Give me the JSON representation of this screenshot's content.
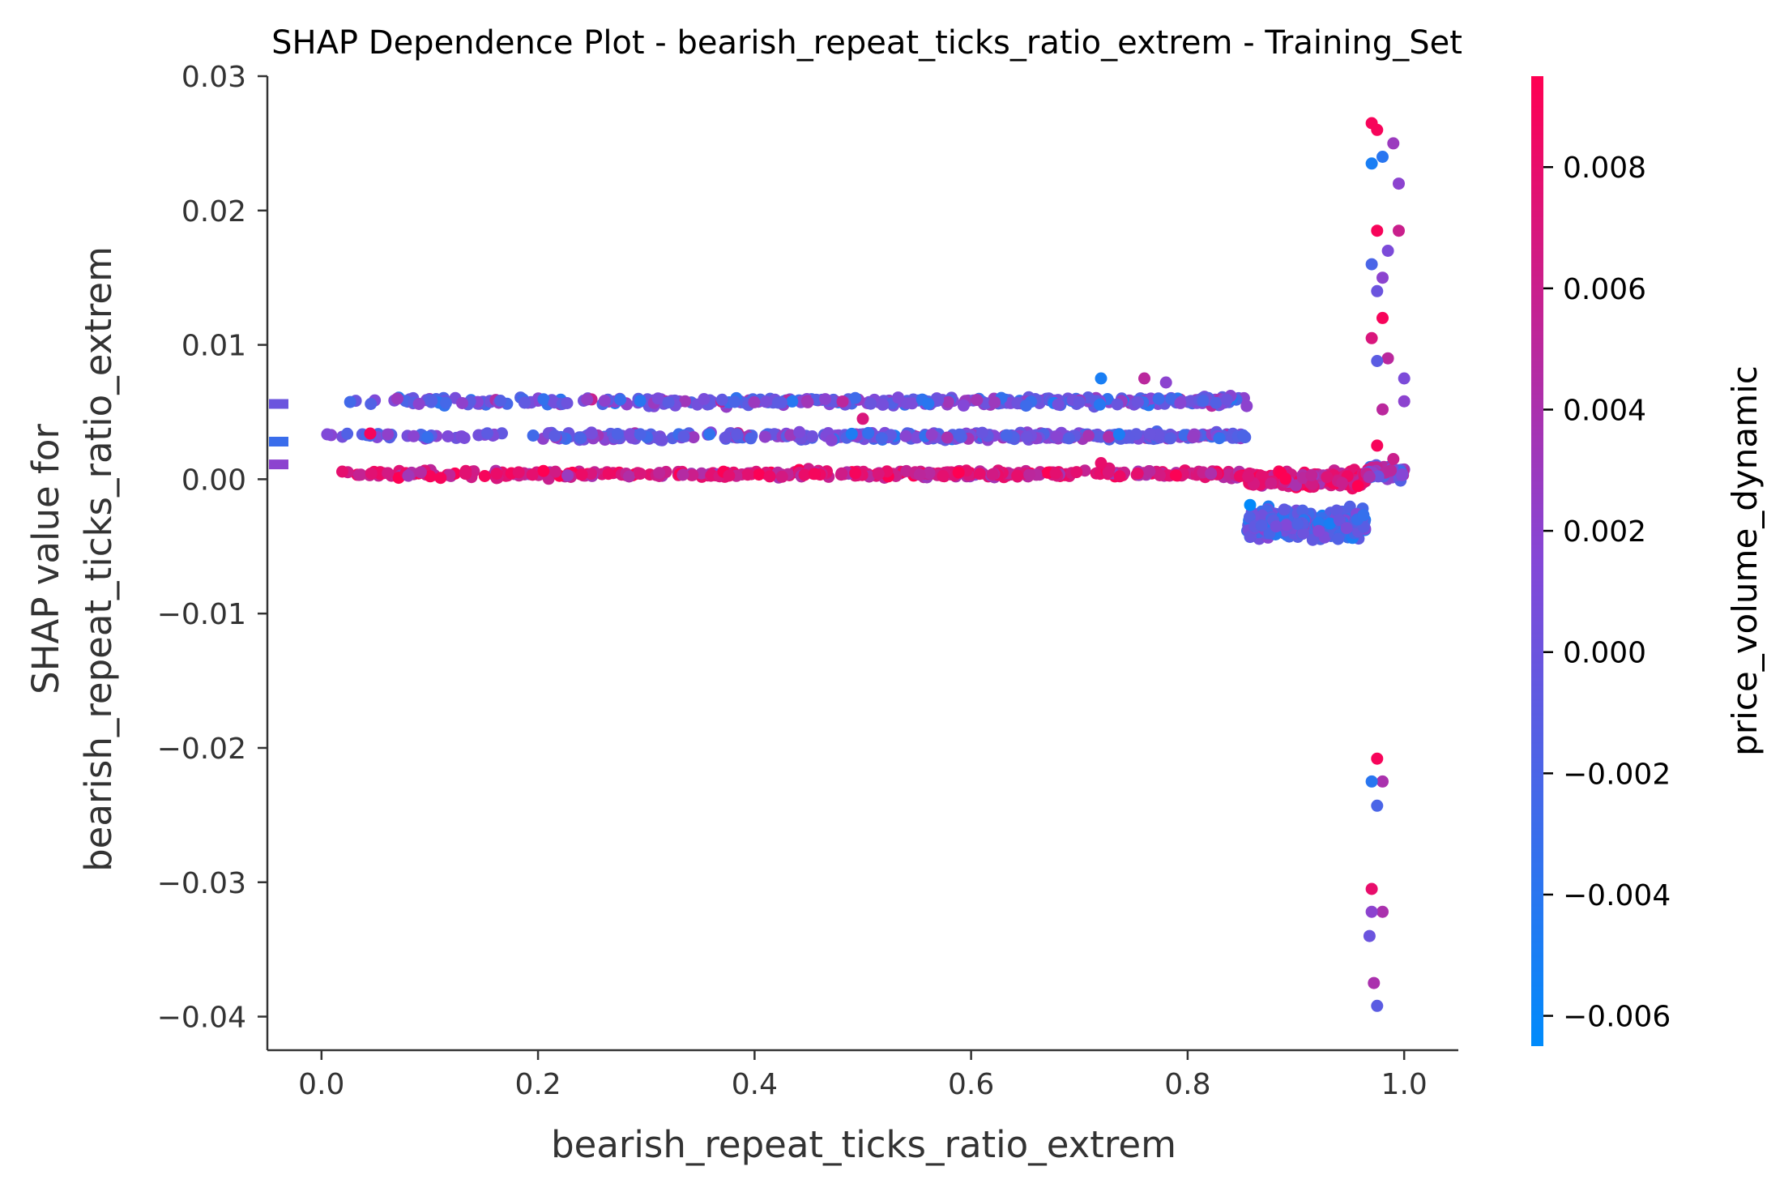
{
  "chart_data": {
    "type": "scatter",
    "title": "SHAP Dependence Plot - bearish_repeat_ticks_ratio_extrem - Training_Set",
    "xlabel": "bearish_repeat_ticks_ratio_extrem",
    "ylabel_line1": "SHAP value for",
    "ylabel_line2": "bearish_repeat_ticks_ratio_extrem",
    "xlim": [
      -0.05,
      1.05
    ],
    "ylim": [
      -0.0425,
      0.03
    ],
    "xticks": [
      0.0,
      0.2,
      0.4,
      0.6,
      0.8,
      1.0
    ],
    "xtick_labels": [
      "0.0",
      "0.2",
      "0.4",
      "0.6",
      "0.8",
      "1.0"
    ],
    "yticks": [
      0.03,
      0.02,
      0.01,
      0.0,
      -0.01,
      -0.02,
      -0.03,
      -0.04
    ],
    "ytick_labels": [
      "0.03",
      "0.02",
      "0.01",
      "0.00",
      "−0.01",
      "−0.02",
      "−0.03",
      "−0.04"
    ],
    "grid": false,
    "colorbar": {
      "label": "price_volume_dynamic",
      "range": [
        -0.0065,
        0.0095
      ],
      "ticks": [
        0.008,
        0.006,
        0.004,
        0.002,
        0.0,
        -0.002,
        -0.004,
        -0.006
      ],
      "tick_labels": [
        "0.008",
        "0.006",
        "0.004",
        "0.002",
        "0.000",
        "−0.002",
        "−0.004",
        "−0.006"
      ],
      "colors": {
        "low": "#008bfb",
        "mid": "#8447d7",
        "high": "#ff0052"
      }
    },
    "series": [
      {
        "bands": [
          {
            "x_range": [
              0.0,
              0.855
            ],
            "y": 0.0058,
            "y_jitter": 0.0004,
            "count": 380,
            "color_mean": 0.0001,
            "color_spread": 0.0045
          },
          {
            "x_range": [
              0.0,
              0.855
            ],
            "y": 0.0032,
            "y_jitter": 0.0004,
            "count": 380,
            "color_mean": 0.0003,
            "color_spread": 0.0045
          },
          {
            "x_range": [
              0.0,
              0.855
            ],
            "y": 0.0004,
            "y_jitter": 0.0004,
            "count": 380,
            "color_mean": 0.0065,
            "color_spread": 0.0035
          },
          {
            "x_range": [
              0.855,
              0.965
            ],
            "y": 0.0,
            "y_jitter": 0.0008,
            "count": 220,
            "color_mean": 0.007,
            "color_spread": 0.0035
          },
          {
            "x_range": [
              0.855,
              0.965
            ],
            "y": -0.0032,
            "y_jitter": 0.0015,
            "count": 300,
            "color_mean": -0.0015,
            "color_spread": 0.004
          },
          {
            "x_range": [
              0.965,
              1.0
            ],
            "y": 0.0005,
            "y_jitter": 0.0007,
            "count": 80,
            "color_mean": 0.002,
            "color_spread": 0.006
          }
        ],
        "outliers": [
          {
            "x": 0.975,
            "y": 0.026,
            "c": 0.009
          },
          {
            "x": 0.97,
            "y": 0.0265,
            "c": 0.009
          },
          {
            "x": 0.98,
            "y": 0.024,
            "c": -0.004
          },
          {
            "x": 0.99,
            "y": 0.025,
            "c": 0.003
          },
          {
            "x": 0.995,
            "y": 0.022,
            "c": 0.002
          },
          {
            "x": 0.97,
            "y": 0.0235,
            "c": -0.005
          },
          {
            "x": 0.975,
            "y": 0.0185,
            "c": 0.009
          },
          {
            "x": 0.985,
            "y": 0.017,
            "c": 0.001
          },
          {
            "x": 0.97,
            "y": 0.016,
            "c": -0.002
          },
          {
            "x": 0.98,
            "y": 0.015,
            "c": 0.002
          },
          {
            "x": 0.995,
            "y": 0.0185,
            "c": 0.006
          },
          {
            "x": 0.975,
            "y": 0.014,
            "c": 0.0
          },
          {
            "x": 0.98,
            "y": 0.012,
            "c": 0.009
          },
          {
            "x": 0.97,
            "y": 0.0105,
            "c": 0.007
          },
          {
            "x": 0.985,
            "y": 0.009,
            "c": 0.005
          },
          {
            "x": 0.975,
            "y": 0.0088,
            "c": -0.001
          },
          {
            "x": 1.0,
            "y": 0.0075,
            "c": 0.001
          },
          {
            "x": 0.98,
            "y": 0.0052,
            "c": 0.005
          },
          {
            "x": 1.0,
            "y": 0.0058,
            "c": 0.002
          },
          {
            "x": 0.975,
            "y": 0.0025,
            "c": 0.009
          },
          {
            "x": 0.99,
            "y": 0.0015,
            "c": 0.006
          },
          {
            "x": 0.975,
            "y": -0.0208,
            "c": 0.009
          },
          {
            "x": 0.98,
            "y": -0.0225,
            "c": 0.004
          },
          {
            "x": 0.97,
            "y": -0.0225,
            "c": -0.004
          },
          {
            "x": 0.975,
            "y": -0.0243,
            "c": -0.002
          },
          {
            "x": 0.97,
            "y": -0.0305,
            "c": 0.008
          },
          {
            "x": 0.98,
            "y": -0.0322,
            "c": 0.004
          },
          {
            "x": 0.97,
            "y": -0.0322,
            "c": 0.002
          },
          {
            "x": 0.968,
            "y": -0.034,
            "c": 0.0
          },
          {
            "x": 0.972,
            "y": -0.0375,
            "c": 0.004
          },
          {
            "x": 0.975,
            "y": -0.0392,
            "c": -0.001
          },
          {
            "x": 0.045,
            "y": 0.0034,
            "c": 0.009
          },
          {
            "x": 0.07,
            "y": 0.006,
            "c": 0.003
          },
          {
            "x": 0.11,
            "y": 0.0001,
            "c": 0.009
          },
          {
            "x": 0.09,
            "y": 0.0056,
            "c": 0.002
          },
          {
            "x": 0.72,
            "y": 0.0075,
            "c": -0.005
          },
          {
            "x": 0.76,
            "y": 0.0075,
            "c": 0.005
          },
          {
            "x": 0.78,
            "y": 0.0072,
            "c": 0.002
          },
          {
            "x": 0.5,
            "y": 0.0045,
            "c": 0.007
          },
          {
            "x": 0.72,
            "y": 0.0012,
            "c": 0.008
          }
        ]
      }
    ],
    "edge_markers": [
      {
        "y": 0.0056,
        "c": 0.0
      },
      {
        "y": 0.0028,
        "c": -0.003
      },
      {
        "y": 0.0011,
        "c": 0.002
      }
    ]
  }
}
